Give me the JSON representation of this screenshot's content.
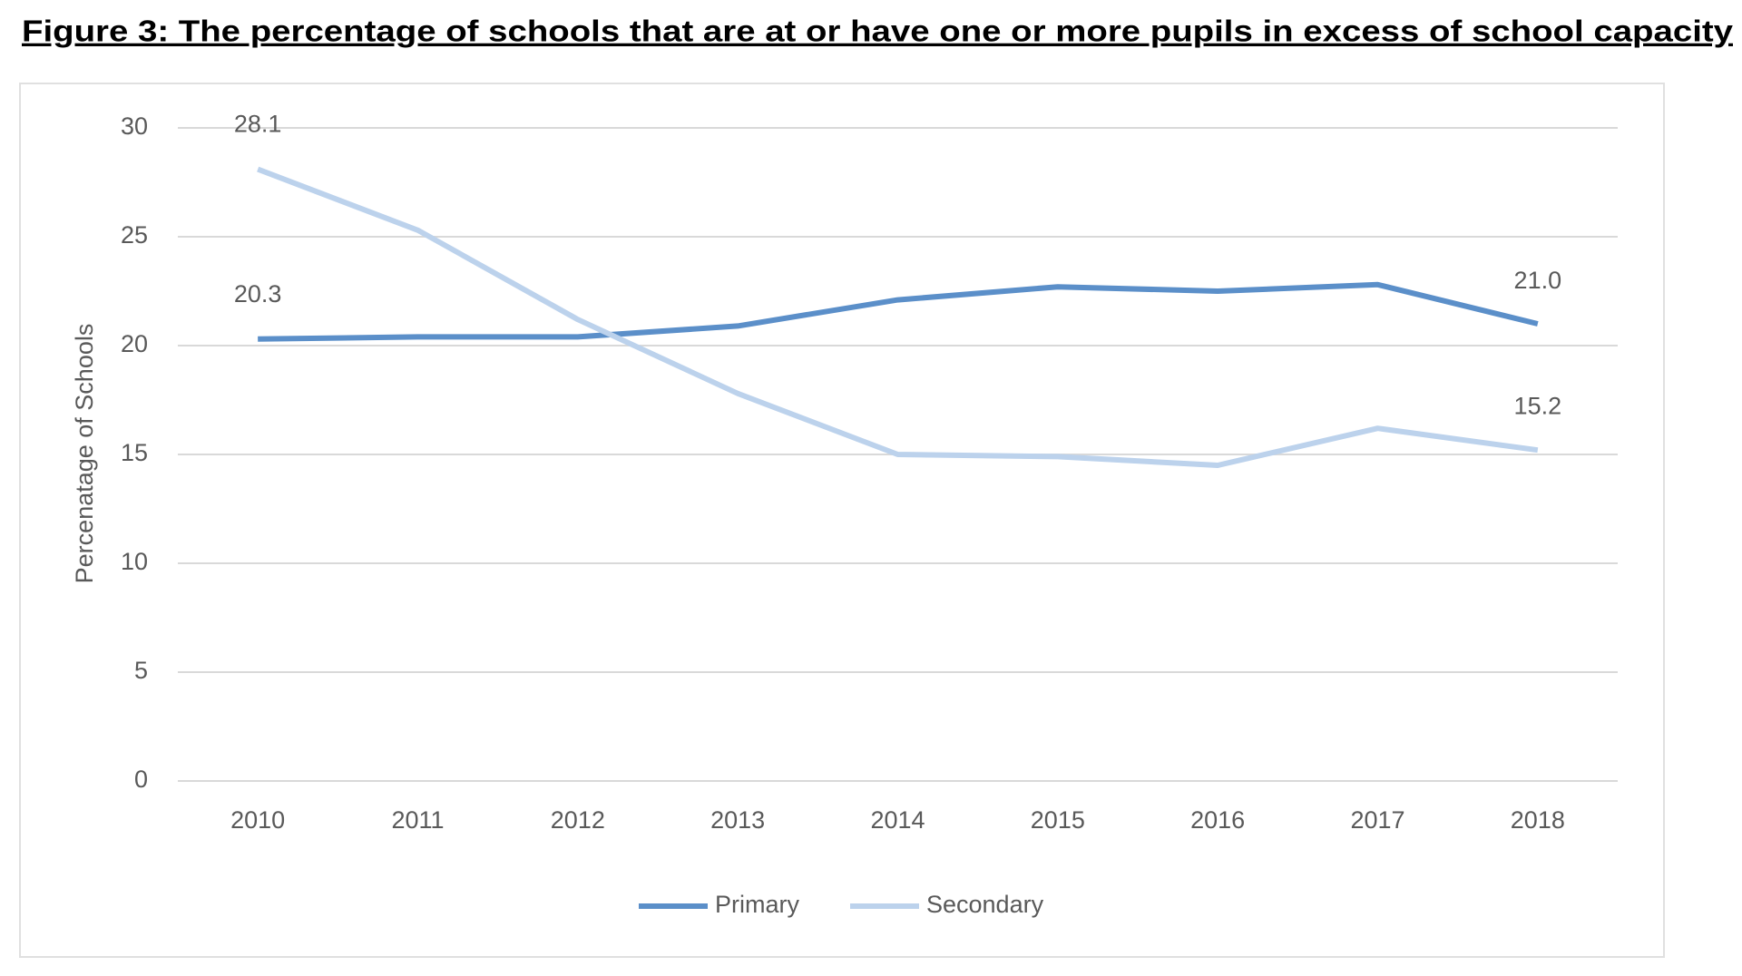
{
  "chart_data": {
    "type": "line",
    "title": "Figure 3: The percentage of schools that are at or have one or more pupils in excess of school capacity",
    "y_label": "Percenatage of Schools",
    "categories": [
      "2010",
      "2011",
      "2012",
      "2013",
      "2014",
      "2015",
      "2016",
      "2017",
      "2018"
    ],
    "series": [
      {
        "name": "Primary",
        "color": "#5b8fc9",
        "values": [
          20.3,
          20.4,
          20.4,
          20.9,
          22.1,
          22.7,
          22.5,
          22.8,
          21.0
        ],
        "value_labels": [
          "20.3",
          null,
          null,
          null,
          null,
          null,
          null,
          null,
          "21.0"
        ]
      },
      {
        "name": "Secondary",
        "color": "#bcd2ec",
        "values": [
          28.1,
          25.3,
          21.2,
          17.8,
          15.0,
          14.9,
          14.5,
          16.2,
          15.2
        ],
        "value_labels": [
          "28.1",
          null,
          null,
          null,
          null,
          null,
          null,
          null,
          "15.2"
        ]
      }
    ],
    "ylim": [
      0,
      30
    ],
    "yticks": [
      0,
      5,
      10,
      15,
      20,
      25,
      30
    ],
    "grid": true,
    "legend": "bottom"
  }
}
